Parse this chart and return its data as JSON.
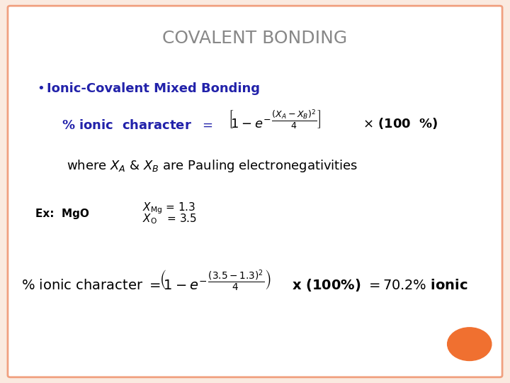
{
  "title": "COVALENT BONDING",
  "title_color": "#888888",
  "title_fontsize": 18,
  "bg_color": "#ffffff",
  "border_color": "#f0a080",
  "bullet_color": "#2222aa",
  "bullet_text": "Ionic-Covalent Mixed Bonding",
  "formula_color": "#2222aa",
  "body_color": "#000000",
  "orange_circle_color": "#f07030",
  "slide_bg": "#faeae0",
  "bullet_fontsize": 13,
  "formula_fontsize": 13,
  "body_fontsize": 13,
  "small_fontsize": 11
}
